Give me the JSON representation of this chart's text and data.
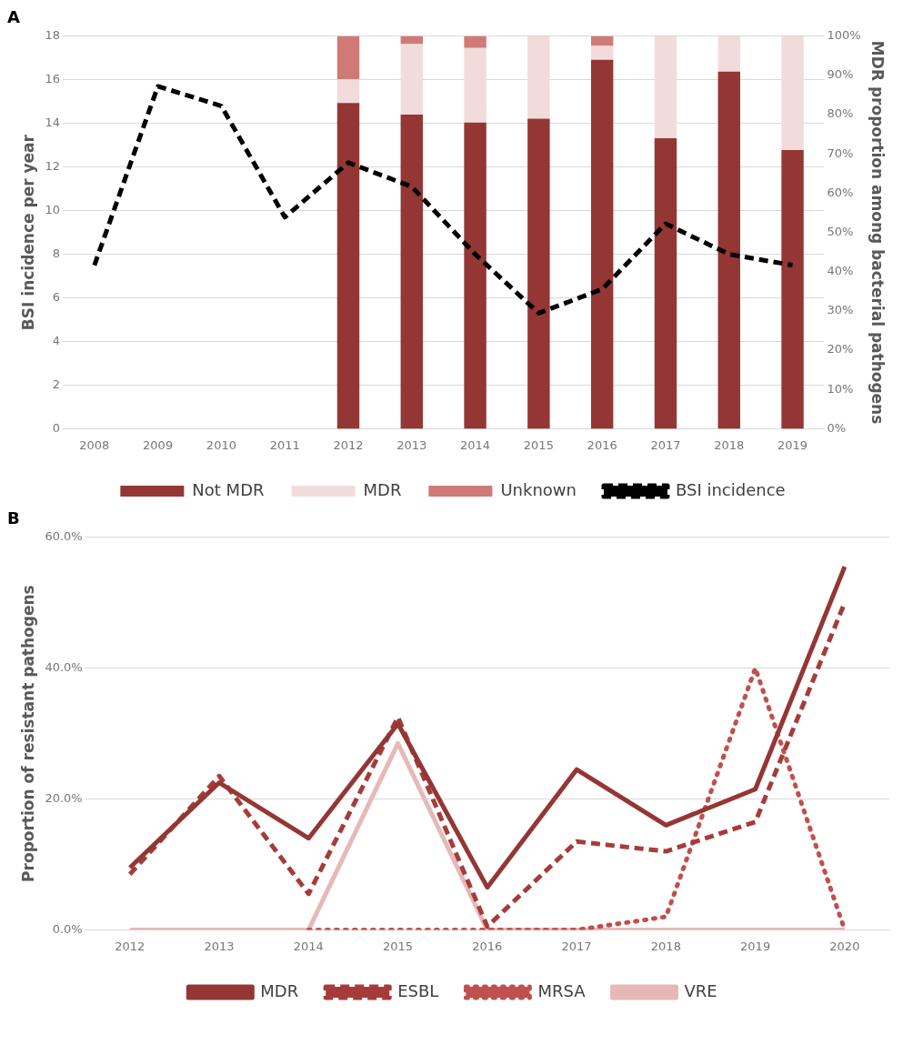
{
  "chart_data": [
    {
      "type": "bar",
      "annotations": [
        "A"
      ],
      "ylabel": "BSI incidence per year",
      "y2label": "MDR proportion among bacterial pathogens",
      "categories": [
        "2008",
        "2009",
        "2010",
        "2011",
        "2012",
        "2013",
        "2014",
        "2015",
        "2016",
        "2017",
        "2018",
        "2019"
      ],
      "stacked": true,
      "legend": "bottom",
      "grid": "y",
      "ylim": [
        0,
        18
      ],
      "yticks": [
        0,
        2,
        4,
        6,
        8,
        10,
        12,
        14,
        16,
        18
      ],
      "y2lim": [
        0,
        100
      ],
      "y2ticks": [
        {
          "value": 0,
          "label": "0%"
        },
        {
          "value": 10,
          "label": "10%"
        },
        {
          "value": 20,
          "label": "20%"
        },
        {
          "value": 30,
          "label": "30%"
        },
        {
          "value": 40,
          "label": "40%"
        },
        {
          "value": 50,
          "label": "50%"
        },
        {
          "value": 60,
          "label": "60%"
        },
        {
          "value": 70,
          "label": "70%"
        },
        {
          "value": 80,
          "label": "80%"
        },
        {
          "value": 90,
          "label": "90%"
        },
        {
          "value": 100,
          "label": "100%"
        }
      ],
      "series": [
        {
          "name": "Not MDR",
          "color": "#943634",
          "axis": "y2",
          "values": [
            null,
            null,
            null,
            null,
            83,
            80,
            78,
            79,
            94,
            74,
            91,
            71
          ]
        },
        {
          "name": "MDR",
          "color": "#f2dcdb",
          "axis": "y2",
          "values": [
            null,
            null,
            null,
            null,
            6,
            18,
            19,
            21,
            3.5,
            26,
            9,
            29
          ]
        },
        {
          "name": "Unknown",
          "color": "#d07a78",
          "axis": "y2",
          "values": [
            null,
            null,
            null,
            null,
            11,
            2,
            3,
            0,
            2.5,
            0,
            0,
            0
          ]
        },
        {
          "name": "BSI incidence",
          "type": "line",
          "color": "#000000",
          "line_style": "dashed",
          "values": [
            7.5,
            15.7,
            14.8,
            9.7,
            12.2,
            11.1,
            8,
            5.3,
            6.4,
            9.4,
            8,
            7.5
          ]
        }
      ]
    },
    {
      "type": "line",
      "annotations": [
        "B"
      ],
      "ylabel": "Proportion of resistant pathogens",
      "categories": [
        "2012",
        "2013",
        "2014",
        "2015",
        "2016",
        "2017",
        "2018",
        "2019",
        "2020"
      ],
      "legend": "bottom",
      "grid": "y",
      "ylim": [
        0,
        60
      ],
      "yticks": [
        {
          "value": 0,
          "label": "0.0%"
        },
        {
          "value": 20,
          "label": "20.0%"
        },
        {
          "value": 40,
          "label": "40.0%"
        },
        {
          "value": 60,
          "label": "60.0%"
        }
      ],
      "series": [
        {
          "name": "MDR",
          "color": "#943634",
          "line_style": "solid",
          "values": [
            9.5,
            22.5,
            14,
            31.5,
            6.5,
            24.5,
            16,
            21.5,
            55.5
          ]
        },
        {
          "name": "ESBL",
          "color": "#a53c3a",
          "line_style": "dashed",
          "values": [
            8.5,
            23.5,
            5.5,
            32.5,
            0.5,
            13.5,
            12,
            16.5,
            50
          ]
        },
        {
          "name": "MRSA",
          "color": "#c0504d",
          "line_style": "dotted",
          "values": [
            null,
            null,
            0,
            0,
            0,
            0,
            2,
            40,
            0
          ]
        },
        {
          "name": "VRE",
          "color": "#e6b9b8",
          "line_style": "solid",
          "values": [
            0,
            0,
            0,
            28.5,
            0,
            0,
            0,
            0,
            0
          ]
        }
      ]
    }
  ]
}
